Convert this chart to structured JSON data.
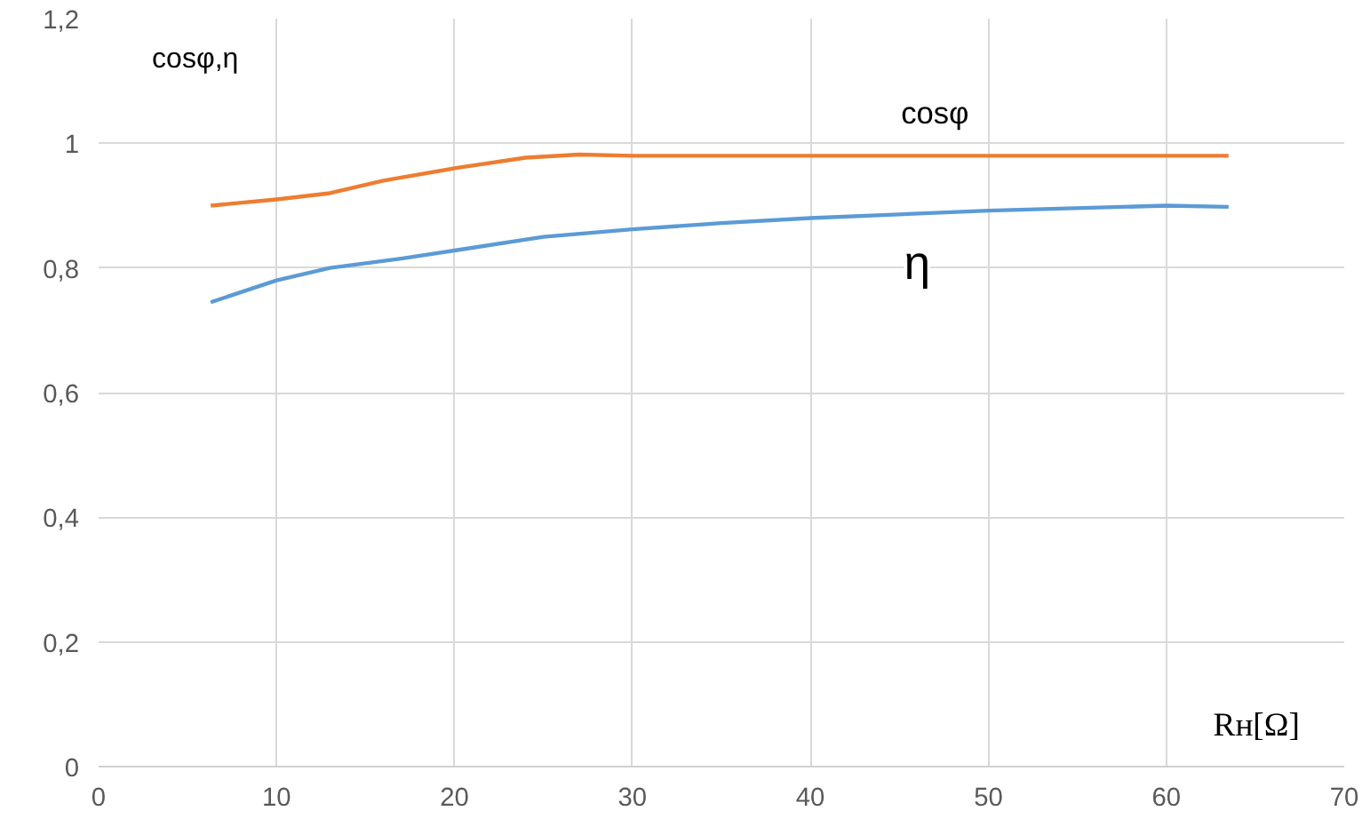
{
  "chart_data": {
    "type": "line",
    "xlabel": "Rн[Ω]",
    "ylabel": "cosφ,η",
    "xlim": [
      0,
      70
    ],
    "xticks": [
      0,
      10,
      20,
      30,
      40,
      50,
      60,
      70
    ],
    "ylim": [
      0,
      1.2
    ],
    "yticks": [
      0,
      {
        "value": 0.2,
        "label": "0,2"
      },
      {
        "value": 0.4,
        "label": "0,4"
      },
      {
        "value": 0.6,
        "label": "0,6"
      },
      {
        "value": 0.8,
        "label": "0,8"
      },
      1,
      {
        "value": 1.2,
        "label": "1,2"
      }
    ],
    "grid": true,
    "marker": "none",
    "line_style": "solid",
    "series": [
      {
        "name": "cosφ",
        "color": "#ed7d31",
        "x": [
          6.3,
          10,
          13,
          16,
          20,
          24,
          27,
          30,
          40,
          50,
          63.5
        ],
        "values": [
          0.9,
          0.91,
          0.92,
          0.94,
          0.96,
          0.977,
          0.982,
          0.98,
          0.98,
          0.98,
          0.98
        ]
      },
      {
        "name": "η",
        "color": "#5b9bd5",
        "x": [
          6.3,
          10,
          13,
          17,
          20,
          25,
          30,
          35,
          40,
          50,
          60,
          63.5
        ],
        "values": [
          0.745,
          0.78,
          0.8,
          0.815,
          0.828,
          0.85,
          0.862,
          0.872,
          0.88,
          0.892,
          0.9,
          0.898
        ]
      }
    ]
  }
}
